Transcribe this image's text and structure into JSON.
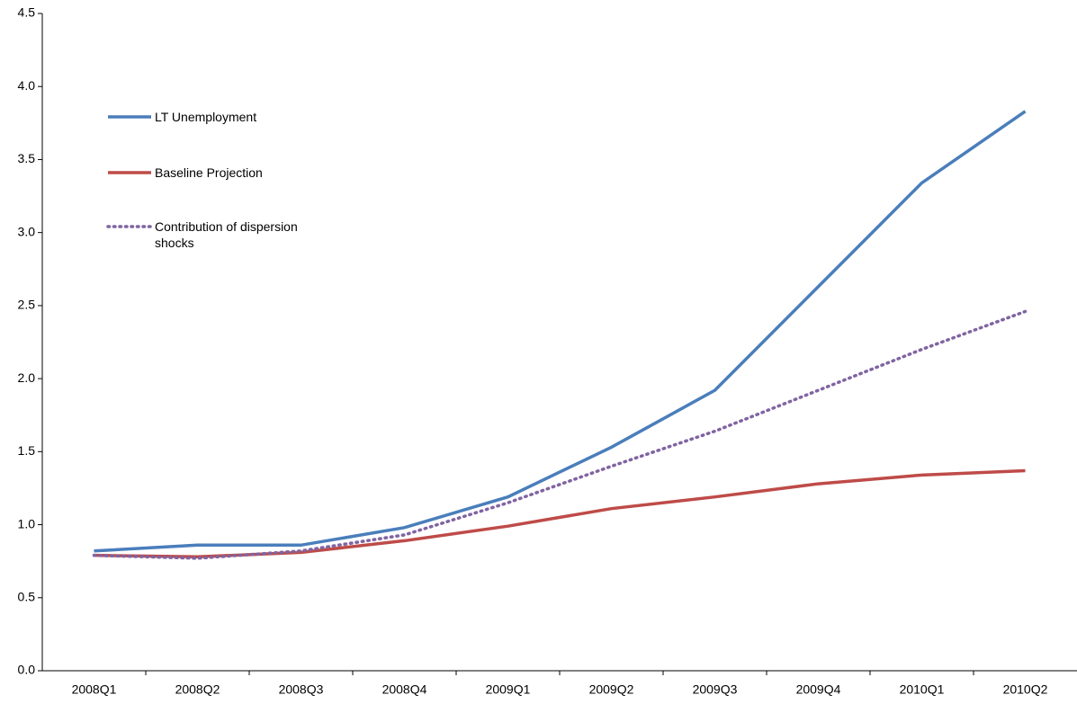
{
  "chart_data": {
    "type": "line",
    "categories": [
      "2008Q1",
      "2008Q2",
      "2008Q3",
      "2008Q4",
      "2009Q1",
      "2009Q2",
      "2009Q3",
      "2009Q4",
      "2010Q1",
      "2010Q2"
    ],
    "series": [
      {
        "name": "LT Unemployment",
        "color": "#4a7ebb",
        "style": "solid",
        "values": [
          0.82,
          0.86,
          0.86,
          0.98,
          1.19,
          1.53,
          1.92,
          2.63,
          3.34,
          3.83
        ]
      },
      {
        "name": "Baseline Projection",
        "color": "#be4b48",
        "style": "solid",
        "values": [
          0.79,
          0.78,
          0.81,
          0.89,
          0.99,
          1.11,
          1.19,
          1.28,
          1.34,
          1.37
        ]
      },
      {
        "name": "Contribution of dispersion shocks",
        "color": "#8064a2",
        "style": "dotted",
        "values": [
          0.79,
          0.77,
          0.82,
          0.93,
          1.15,
          1.4,
          1.64,
          1.92,
          2.2,
          2.46
        ]
      }
    ],
    "ylim": [
      0,
      4.5
    ],
    "yticks": [
      {
        "value": 0,
        "label": "0.0"
      },
      0.5,
      {
        "value": 1,
        "label": "1.0"
      },
      1.5,
      {
        "value": 2,
        "label": "2.0"
      },
      2.5,
      {
        "value": 3,
        "label": "3.0"
      },
      3.5,
      {
        "value": 4,
        "label": "4.0"
      },
      4.5
    ],
    "grid": false,
    "legend": "upper left"
  }
}
